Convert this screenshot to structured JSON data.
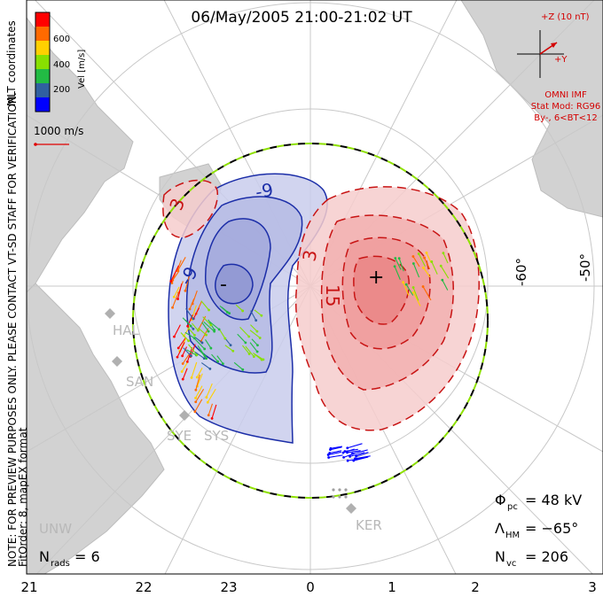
{
  "title": "06/May/2005 21:00-21:02 UT",
  "side_note": {
    "line1": "NOTE: FOR PREVIEW PURPOSES ONLY. PLEASE CONTACT VT-SD STAFF FOR VERIFICATION.",
    "line2": "FitOrder: 8, mapEX format"
  },
  "colorbar": {
    "label": "Vel [m/s]",
    "coord_label": "MLT coordinates",
    "ticks": [
      "600",
      "400",
      "200"
    ],
    "colors": [
      "#ff0000",
      "#ff6a00",
      "#ffd000",
      "#88e000",
      "#22bb44",
      "#3060a0",
      "#0000ff"
    ]
  },
  "scale_vector": {
    "label": "1000 m/s"
  },
  "imf": {
    "z_label": "+Z (10 nT)",
    "y_label": "+Y",
    "source": "OMNI IMF",
    "model": "Stat Mod: RG96",
    "condition": "By-, 6<BT<12"
  },
  "latitude_labels": [
    "-60°",
    "-50°"
  ],
  "mlt_labels": [
    "21",
    "22",
    "23",
    "0",
    "1",
    "2",
    "3"
  ],
  "contour_labels": {
    "negative": [
      "-9",
      "-9",
      "-"
    ],
    "positive": [
      "3",
      "3",
      "15",
      "+"
    ]
  },
  "stations": [
    "HAL",
    "SAN",
    "SYE",
    "SYS",
    "UNW",
    "KER"
  ],
  "stats": {
    "nrads_label": "N",
    "nrads_sub": "rads",
    "nrads_value": "= 6",
    "phi_label": "Φ",
    "phi_sub": "pc",
    "phi_value": "= 48 kV",
    "lambda_label": "Λ",
    "lambda_sub": "HM",
    "lambda_value": "= −65°",
    "nvc_label": "N",
    "nvc_sub": "vc",
    "nvc_value": "= 206"
  },
  "colors": {
    "negative_contour": "#1c2ea8",
    "negative_fill": "#c9cdec",
    "positive_contour": "#c81414",
    "positive_fill": "#f4b4b4",
    "land": "#d2d2d2",
    "grid": "#c8c8c8",
    "boundary_dash_a": "#000000",
    "boundary_dash_b": "#8ee000"
  }
}
